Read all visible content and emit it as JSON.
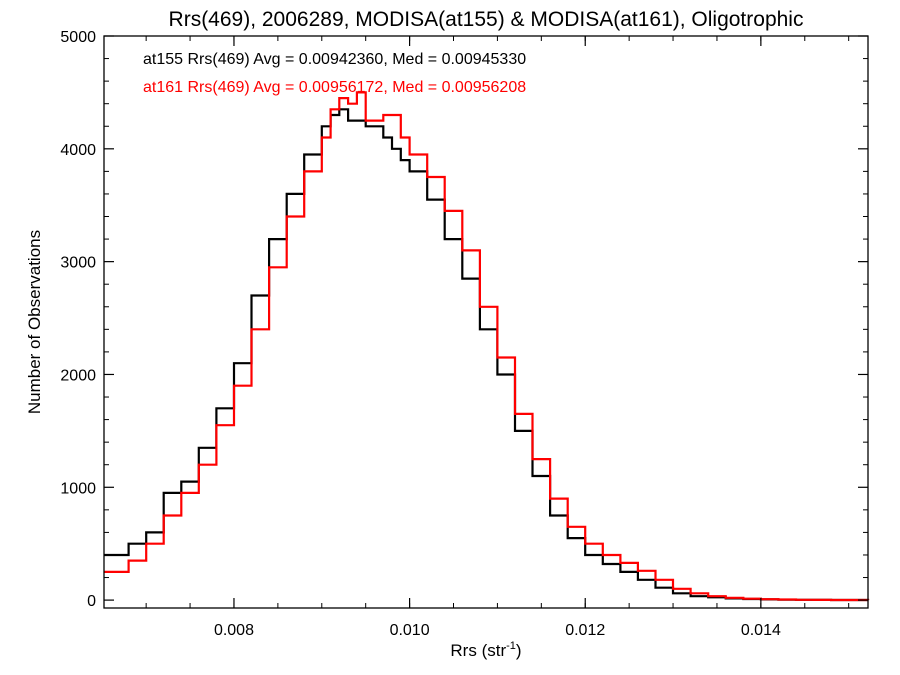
{
  "chart_data": {
    "type": "line",
    "step": true,
    "title": "Rrs(469), 2006289, MODISA(at155) & MODISA(at161), Oligotrophic",
    "xlabel": "Rrs (str",
    "xlabel_sup": "-1",
    "xlabel_end": ")",
    "ylabel": "Number of Observations",
    "xlim": [
      0.00652,
      0.01522
    ],
    "ylim": [
      -70,
      5000
    ],
    "xticks": [
      {
        "value": 0.008,
        "label": "0.008"
      },
      {
        "value": 0.01,
        "label": "0.010"
      },
      {
        "value": 0.012,
        "label": "0.012"
      },
      {
        "value": 0.014,
        "label": "0.014"
      }
    ],
    "xminor_step": 0.0005,
    "yticks": [
      {
        "value": 0,
        "label": "0"
      },
      {
        "value": 1000,
        "label": "1000"
      },
      {
        "value": 2000,
        "label": "2000"
      },
      {
        "value": 3000,
        "label": "3000"
      },
      {
        "value": 4000,
        "label": "4000"
      },
      {
        "value": 5000,
        "label": "5000"
      }
    ],
    "yminor_step": 200,
    "annotations": [
      {
        "text": "at155 Rrs(469) Avg = 0.00942360, Med = 0.00945330",
        "color": "#000000"
      },
      {
        "text": "at161 Rrs(469) Avg = 0.00956172, Med = 0.00956208",
        "color": "#ff0000"
      }
    ],
    "series": [
      {
        "color": "#000000",
        "x": [
          0.00652,
          0.0068,
          0.007,
          0.0072,
          0.0074,
          0.0076,
          0.0078,
          0.008,
          0.0082,
          0.0084,
          0.0086,
          0.0088,
          0.009,
          0.0091,
          0.0092,
          0.0093,
          0.0094,
          0.0095,
          0.0096,
          0.0097,
          0.0098,
          0.0099,
          0.01,
          0.0102,
          0.0104,
          0.0106,
          0.0108,
          0.011,
          0.0112,
          0.0114,
          0.0116,
          0.0118,
          0.012,
          0.0122,
          0.0124,
          0.0126,
          0.0128,
          0.013,
          0.0132,
          0.0134,
          0.0136,
          0.0138,
          0.014,
          0.0142,
          0.0144,
          0.0146,
          0.0148,
          0.015,
          0.01522
        ],
        "y": [
          400,
          500,
          600,
          950,
          1050,
          1350,
          1700,
          2100,
          2700,
          3200,
          3600,
          3950,
          4200,
          4300,
          4350,
          4250,
          4250,
          4200,
          4200,
          4100,
          4000,
          3900,
          3800,
          3550,
          3200,
          2850,
          2400,
          2000,
          1500,
          1100,
          750,
          550,
          400,
          320,
          250,
          180,
          110,
          60,
          35,
          25,
          15,
          10,
          6,
          4,
          3,
          2,
          1,
          1,
          0
        ]
      },
      {
        "color": "#ff0000",
        "x": [
          0.00652,
          0.0068,
          0.007,
          0.0072,
          0.0074,
          0.0076,
          0.0078,
          0.008,
          0.0082,
          0.0084,
          0.0086,
          0.0088,
          0.009,
          0.0091,
          0.0092,
          0.0093,
          0.0094,
          0.0095,
          0.0096,
          0.0097,
          0.0098,
          0.0099,
          0.01,
          0.0102,
          0.0104,
          0.0106,
          0.0108,
          0.011,
          0.0112,
          0.0114,
          0.0116,
          0.0118,
          0.012,
          0.0122,
          0.0124,
          0.0126,
          0.0128,
          0.013,
          0.0132,
          0.0134,
          0.0136,
          0.0138,
          0.014,
          0.0142,
          0.0144,
          0.0146,
          0.0148,
          0.015,
          0.01522
        ],
        "y": [
          250,
          350,
          500,
          750,
          950,
          1200,
          1550,
          1900,
          2400,
          2950,
          3400,
          3800,
          4100,
          4350,
          4450,
          4400,
          4500,
          4250,
          4250,
          4300,
          4300,
          4100,
          3950,
          3750,
          3450,
          3100,
          2600,
          2150,
          1650,
          1250,
          900,
          650,
          500,
          400,
          330,
          260,
          180,
          100,
          60,
          35,
          20,
          12,
          8,
          5,
          3,
          2,
          1,
          1,
          0
        ]
      }
    ]
  }
}
